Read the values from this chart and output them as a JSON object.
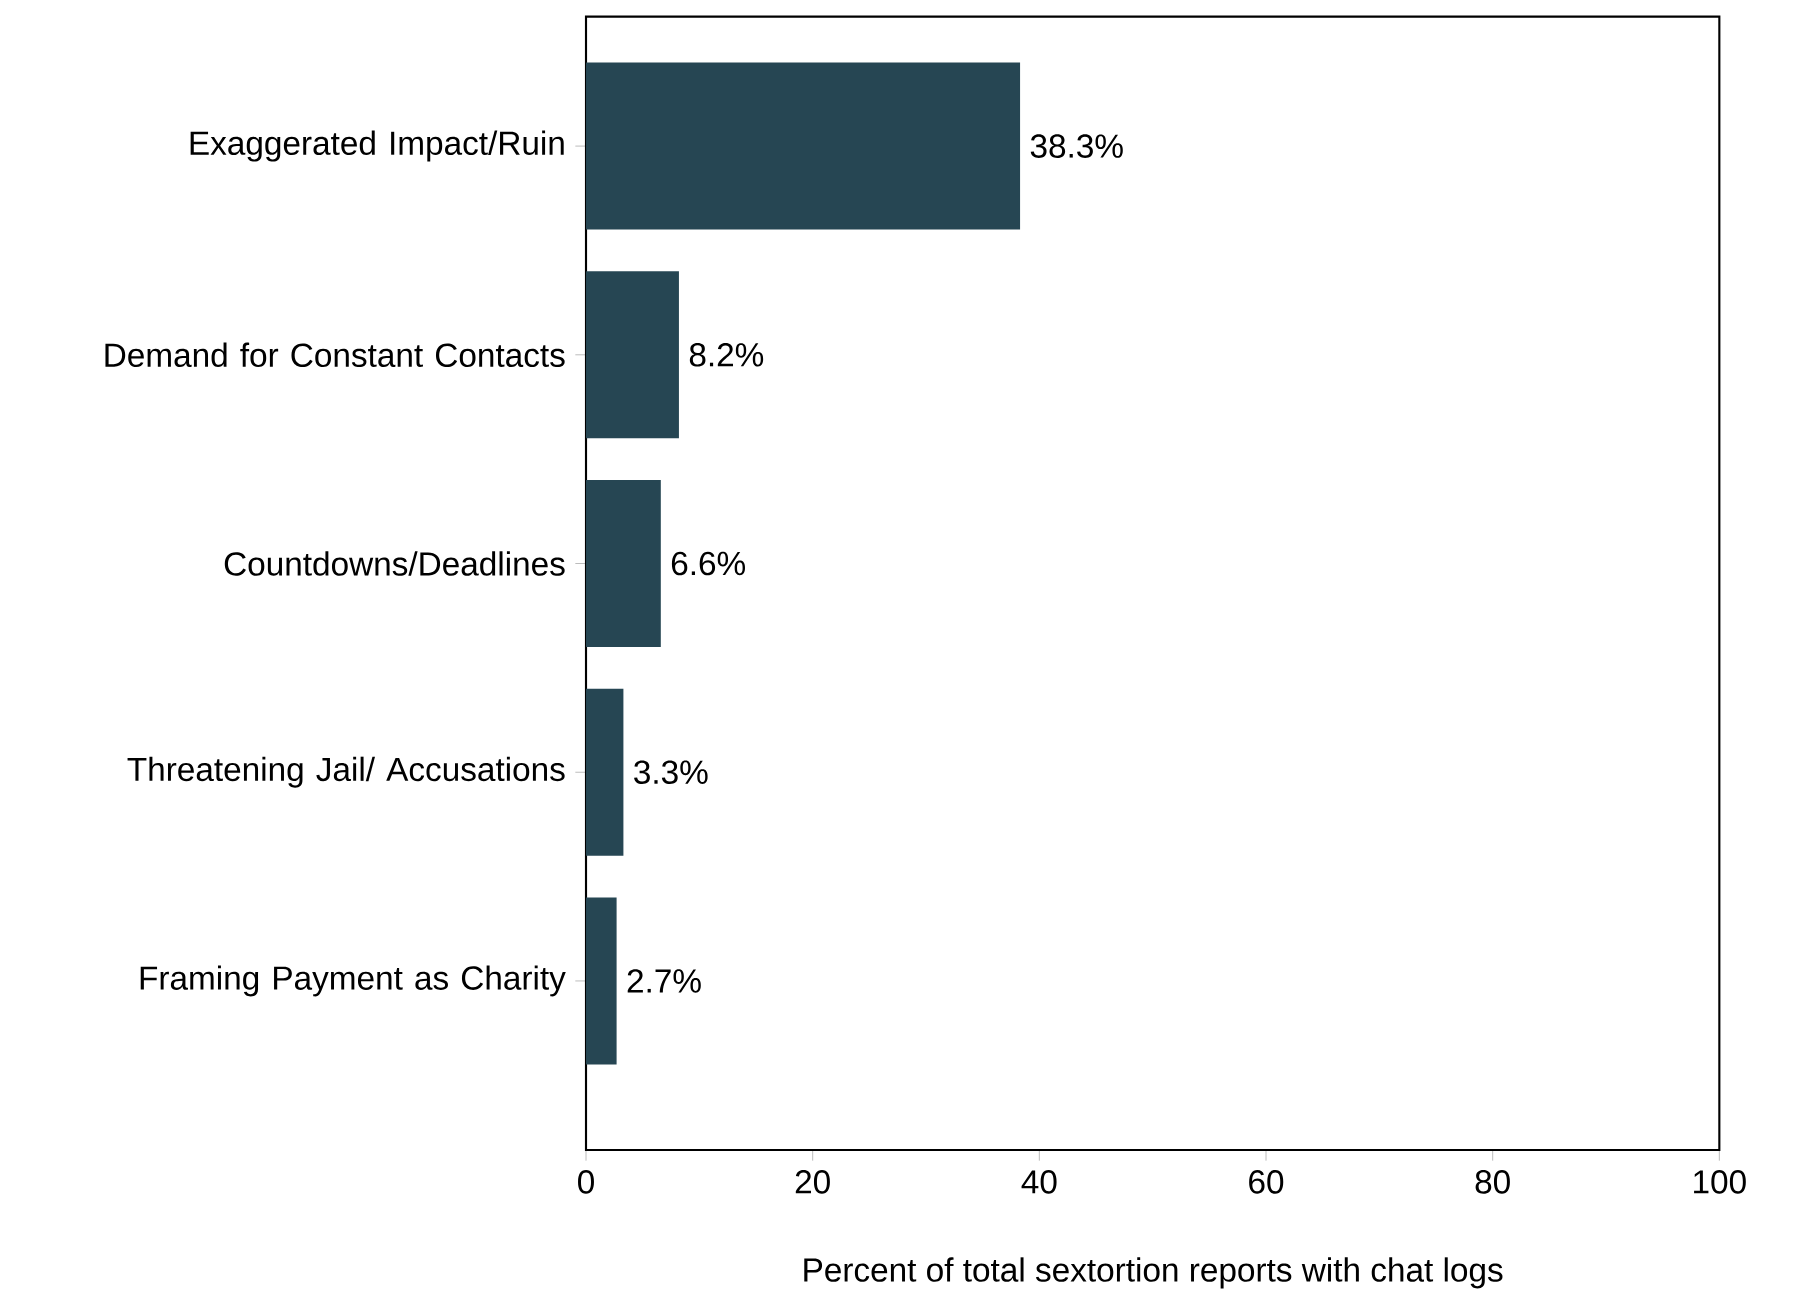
{
  "chart_data": {
    "type": "bar",
    "orientation": "horizontal",
    "categories": [
      "Exaggerated Impact/Ruin",
      "Demand for Constant Contacts",
      "Countdowns/Deadlines",
      "Threatening Jail/ Accusations",
      "Framing Payment as Charity"
    ],
    "values": [
      38.3,
      8.2,
      6.6,
      3.3,
      2.7
    ],
    "value_labels": [
      "38.3%",
      "8.2%",
      "6.6%",
      "3.3%",
      "2.7%"
    ],
    "color": "#264653",
    "xlim": [
      0,
      100
    ],
    "xticks": [
      0,
      20,
      40,
      60,
      80,
      100
    ],
    "xlabel": "Percent of total sextortion reports with chat logs",
    "grid": false
  }
}
